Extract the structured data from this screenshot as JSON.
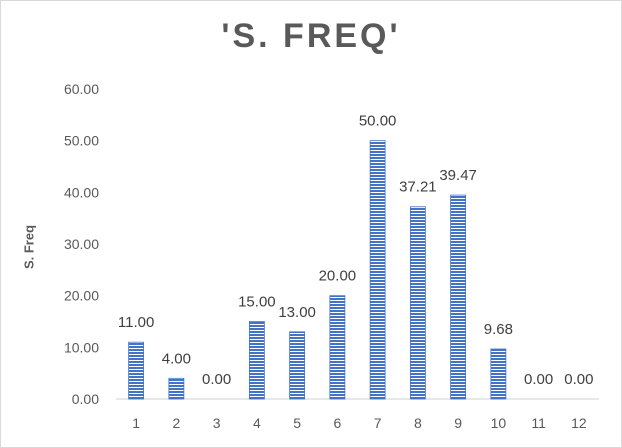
{
  "chart_data": {
    "type": "bar",
    "title": "'S. FREQ'",
    "xlabel": "",
    "ylabel": "S. Freq",
    "categories": [
      "1",
      "2",
      "3",
      "4",
      "5",
      "6",
      "7",
      "8",
      "9",
      "10",
      "11",
      "12"
    ],
    "values": [
      11.0,
      4.0,
      0.0,
      15.0,
      13.0,
      20.0,
      50.0,
      37.21,
      39.47,
      9.68,
      0.0,
      0.0
    ],
    "data_labels": [
      "11.00",
      "4.00",
      "0.00",
      "15.00",
      "13.00",
      "20.00",
      "50.00",
      "37.21",
      "39.47",
      "9.68",
      "0.00",
      "0.00"
    ],
    "ylim": [
      0,
      60
    ],
    "yticks": [
      "0.00",
      "10.00",
      "20.00",
      "30.00",
      "40.00",
      "50.00",
      "60.00"
    ],
    "grid": false,
    "legend": "none",
    "bar_color": "#4472c4",
    "bar_pattern": "horizontal-stripes"
  }
}
